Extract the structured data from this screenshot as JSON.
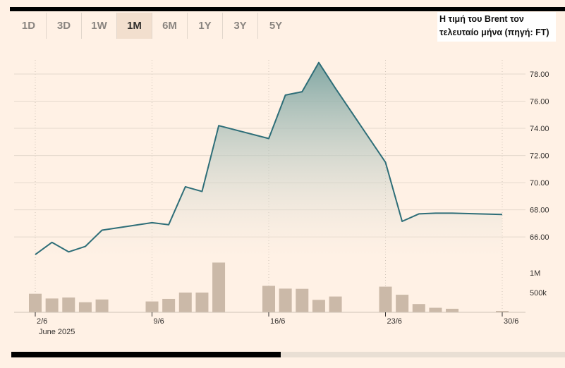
{
  "range_selector": {
    "tabs": [
      {
        "label": "1D"
      },
      {
        "label": "3D"
      },
      {
        "label": "1W"
      },
      {
        "label": "1M",
        "active": true
      },
      {
        "label": "6M"
      },
      {
        "label": "1Y"
      },
      {
        "label": "3Y"
      },
      {
        "label": "5Y"
      }
    ]
  },
  "caption": {
    "line1": "Η τιμή του Brent τον",
    "line2": "τελευταίο μήνα (πηγή: FT)"
  },
  "colors": {
    "background": "#fff1e5",
    "line": "#2e6e78",
    "area_top": "#7aa3a0",
    "volume_bar": "#cbb9a8"
  },
  "chart_data": {
    "type": "line",
    "x_period_label": "June 2025",
    "x_ticks": [
      "2/6",
      "9/6",
      "16/6",
      "23/6",
      "30/6"
    ],
    "price": {
      "yticks": [
        "66.00",
        "68.00",
        "70.00",
        "72.00",
        "74.00",
        "76.00",
        "78.00"
      ],
      "ylim": [
        64.5,
        79.3
      ],
      "x": [
        "2025-06-02",
        "2025-06-03",
        "2025-06-04",
        "2025-06-05",
        "2025-06-06",
        "2025-06-09",
        "2025-06-10",
        "2025-06-11",
        "2025-06-12",
        "2025-06-13",
        "2025-06-16",
        "2025-06-17",
        "2025-06-18",
        "2025-06-19",
        "2025-06-20",
        "2025-06-23",
        "2025-06-24",
        "2025-06-25",
        "2025-06-26",
        "2025-06-27",
        "2025-06-30"
      ],
      "values": [
        64.7,
        65.6,
        64.9,
        65.3,
        66.5,
        67.05,
        66.9,
        69.7,
        69.35,
        74.2,
        73.25,
        76.45,
        76.7,
        78.85,
        76.95,
        71.5,
        67.15,
        67.7,
        67.75,
        67.75,
        67.65
      ]
    },
    "volume": {
      "yticks": [
        "500k",
        "1M"
      ],
      "ymax": 1400000,
      "x": [
        "2025-06-02",
        "2025-06-03",
        "2025-06-04",
        "2025-06-05",
        "2025-06-06",
        "2025-06-09",
        "2025-06-10",
        "2025-06-11",
        "2025-06-12",
        "2025-06-13",
        "2025-06-16",
        "2025-06-17",
        "2025-06-18",
        "2025-06-19",
        "2025-06-20",
        "2025-06-23",
        "2025-06-24",
        "2025-06-25",
        "2025-06-26",
        "2025-06-27",
        "2025-06-30"
      ],
      "values": [
        470000,
        350000,
        375000,
        255000,
        325000,
        275000,
        340000,
        500000,
        500000,
        1260000,
        670000,
        600000,
        595000,
        315000,
        400000,
        650000,
        445000,
        210000,
        115000,
        90000,
        20000
      ]
    },
    "grid": true
  }
}
